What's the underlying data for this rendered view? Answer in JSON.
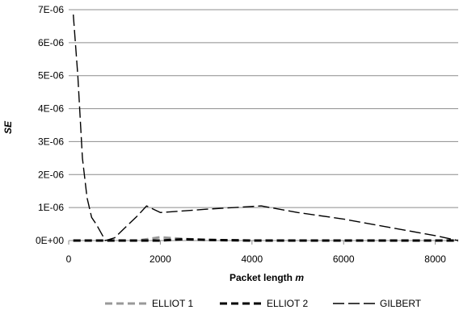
{
  "chart_data": {
    "type": "line",
    "xlabel": "Packet length ",
    "xlabel_italic": "m",
    "ylabel": "SE",
    "xlim": [
      0,
      8500
    ],
    "ylim": [
      0,
      7e-06
    ],
    "x_ticks": [
      0,
      2000,
      4000,
      6000,
      8000
    ],
    "x_tick_labels": [
      "0",
      "2000",
      "4000",
      "6000",
      "8000"
    ],
    "y_ticks": [
      0,
      1e-06,
      2e-06,
      3e-06,
      4e-06,
      5e-06,
      6e-06,
      7e-06
    ],
    "y_tick_labels": [
      "0E+00",
      "1E-06",
      "2E-06",
      "3E-06",
      "4E-06",
      "5E-06",
      "6E-06",
      "7E-06"
    ],
    "grid": "horizontal",
    "legend_position": "bottom",
    "series": [
      {
        "name": "ELLIOT 1",
        "color": "#999999",
        "style": "dashed-thick",
        "points": [
          [
            100,
            0.0
          ],
          [
            500,
            0.0
          ],
          [
            1000,
            0.0
          ],
          [
            1500,
            0.0
          ],
          [
            2000,
            1e-07
          ],
          [
            2500,
            5e-08
          ],
          [
            3000,
            2e-08
          ],
          [
            4000,
            0.0
          ],
          [
            5000,
            0.0
          ],
          [
            6000,
            0.0
          ],
          [
            7000,
            0.0
          ],
          [
            8000,
            0.0
          ],
          [
            8500,
            0.0
          ]
        ]
      },
      {
        "name": "ELLIOT 2",
        "color": "#000000",
        "style": "dashed-thick",
        "points": [
          [
            100,
            0.0
          ],
          [
            500,
            0.0
          ],
          [
            1000,
            0.0
          ],
          [
            1500,
            0.0
          ],
          [
            2000,
            0.0
          ],
          [
            2500,
            4e-08
          ],
          [
            3000,
            2e-08
          ],
          [
            4000,
            0.0
          ],
          [
            5000,
            0.0
          ],
          [
            6000,
            0.0
          ],
          [
            7000,
            0.0
          ],
          [
            8000,
            0.0
          ],
          [
            8500,
            0.0
          ]
        ]
      },
      {
        "name": "GILBERT",
        "color": "#000000",
        "style": "dashed-long",
        "points": [
          [
            100,
            6.85e-06
          ],
          [
            200,
            5e-06
          ],
          [
            300,
            2.5e-06
          ],
          [
            400,
            1.3e-06
          ],
          [
            500,
            7e-07
          ],
          [
            600,
            5e-07
          ],
          [
            700,
            2.5e-07
          ],
          [
            800,
            0.0
          ],
          [
            1000,
            8e-08
          ],
          [
            1200,
            3.5e-07
          ],
          [
            1500,
            7.5e-07
          ],
          [
            1700,
            1.05e-06
          ],
          [
            2000,
            8.5e-07
          ],
          [
            3000,
            9.5e-07
          ],
          [
            4200,
            1.05e-06
          ],
          [
            5000,
            8.5e-07
          ],
          [
            6000,
            6.5e-07
          ],
          [
            7000,
            4e-07
          ],
          [
            8000,
            1.5e-07
          ],
          [
            8500,
            0.0
          ]
        ]
      }
    ]
  }
}
